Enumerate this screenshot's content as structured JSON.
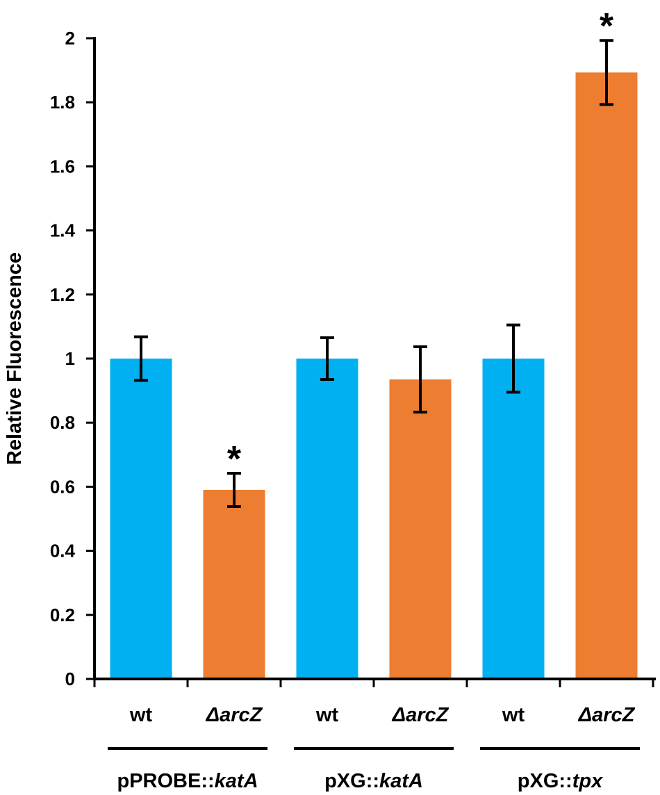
{
  "chart_data": {
    "type": "bar",
    "title": "",
    "xlabel": "",
    "ylabel": "Relative Fluorescence",
    "ylim": [
      0,
      2
    ],
    "yticks": [
      "0",
      "0.2",
      "0.4",
      "0.6",
      "0.8",
      "1",
      "1.2",
      "1.4",
      "1.6",
      "1.8",
      "2"
    ],
    "grid": false,
    "colors": {
      "wt": "#00b0f0",
      "mutant": "#ed7d31",
      "axis": "#000000"
    },
    "groups": [
      {
        "label_prefix": "pPROBE::",
        "label_gene": "katA",
        "bars": [
          {
            "label": "wt",
            "italic": false,
            "series": "wt",
            "value": 1.0,
            "error": 0.068,
            "significance": ""
          },
          {
            "label": "ΔarcZ",
            "italic": true,
            "series": "mutant",
            "value": 0.59,
            "error": 0.052,
            "significance": "*"
          }
        ]
      },
      {
        "label_prefix": "pXG::",
        "label_gene": "katA",
        "bars": [
          {
            "label": "wt",
            "italic": false,
            "series": "wt",
            "value": 1.0,
            "error": 0.065,
            "significance": ""
          },
          {
            "label": "ΔarcZ",
            "italic": true,
            "series": "mutant",
            "value": 0.935,
            "error": 0.102,
            "significance": ""
          }
        ]
      },
      {
        "label_prefix": "pXG::",
        "label_gene": "tpx",
        "bars": [
          {
            "label": "wt",
            "italic": false,
            "series": "wt",
            "value": 1.0,
            "error": 0.105,
            "significance": ""
          },
          {
            "label": "ΔarcZ",
            "italic": true,
            "series": "mutant",
            "value": 1.893,
            "error": 0.1,
            "significance": "*"
          }
        ]
      }
    ]
  }
}
